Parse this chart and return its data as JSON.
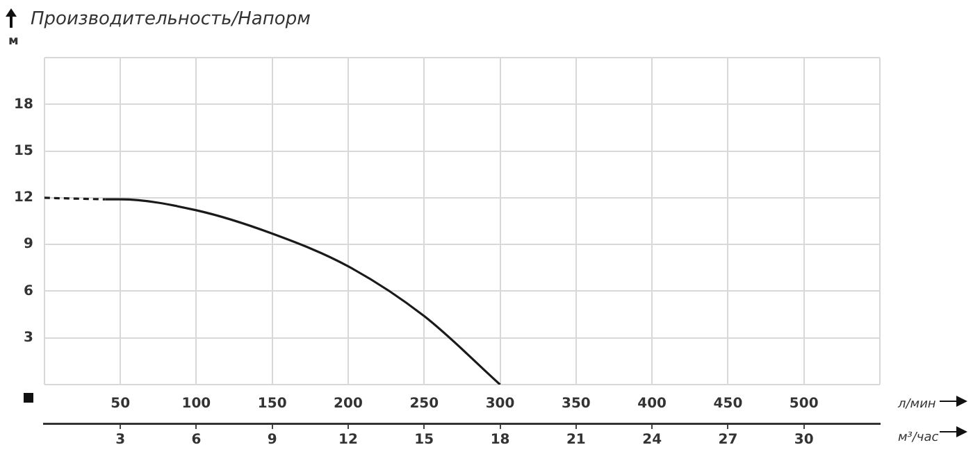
{
  "chart_data": {
    "type": "line",
    "title": "Производительность/Напорм",
    "ylabel": "м",
    "xlabel": "л/мин",
    "x2label": "м³/час",
    "xlim": [
      0,
      550
    ],
    "xticks": [
      {
        "value": 0,
        "label": null
      },
      50,
      100,
      150,
      200,
      250,
      300,
      350,
      400,
      450,
      500,
      {
        "value": 550,
        "label": null
      }
    ],
    "x2lim": [
      0,
      33
    ],
    "x2ticks": [
      3,
      6,
      9,
      12,
      15,
      18,
      21,
      24,
      27,
      30
    ],
    "ylim": [
      0,
      21
    ],
    "yticks": [
      {
        "value": 0,
        "label": null
      },
      3,
      6,
      9,
      12,
      15,
      18,
      {
        "value": 21,
        "label": null
      }
    ],
    "grid": true,
    "legend": false,
    "marker": "none",
    "series": [
      {
        "color": "#1a1a1a",
        "line_style": "dashed",
        "x": [
          0,
          40
        ],
        "values": [
          12,
          11.9
        ]
      },
      {
        "color": "#1a1a1a",
        "line_style": "solid",
        "x": [
          40,
          50,
          100,
          150,
          200,
          250,
          300
        ],
        "values": [
          11.9,
          11.9,
          11.2,
          9.7,
          7.6,
          4.4,
          0
        ]
      }
    ]
  }
}
